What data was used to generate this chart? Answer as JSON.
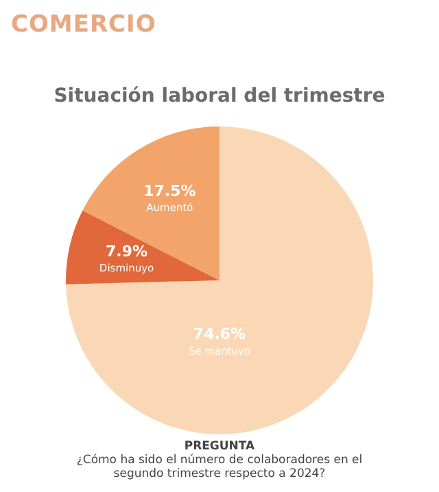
{
  "chart_data": {
    "type": "pie",
    "subtitle": "COMERCIO",
    "title": "Situación laboral del trimestre",
    "categories": [
      "Se mantuvo",
      "Disminuyo",
      "Aumentó"
    ],
    "values": [
      74.6,
      7.9,
      17.5
    ],
    "value_labels": [
      "74.6%",
      "7.9%",
      "17.5%"
    ],
    "colors": [
      "#fad8b6",
      "#e0683a",
      "#f2a46a"
    ],
    "legend": false,
    "annotations": [
      "PREGUNTA",
      "¿Cómo ha sido el número de colaboradores en el segundo trimestre respecto a 2024?"
    ]
  }
}
